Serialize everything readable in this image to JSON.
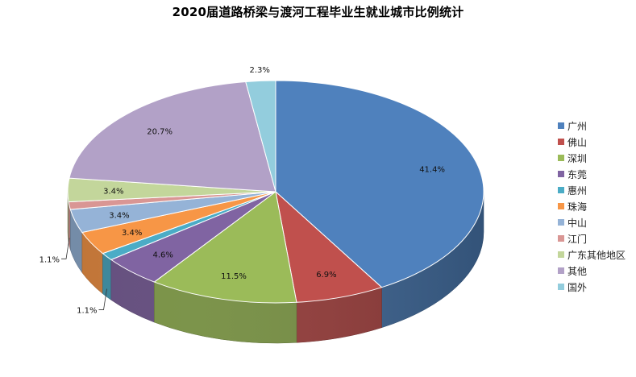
{
  "chart_data": {
    "type": "pie",
    "title": "2020届道路桥梁与渡河工程毕业生就业城市比例统计",
    "categories": [
      "广州",
      "佛山",
      "深圳",
      "东莞",
      "惠州",
      "珠海",
      "中山",
      "江门",
      "广东其他地区",
      "其他",
      "国外"
    ],
    "values": [
      41.4,
      6.9,
      11.5,
      4.6,
      1.1,
      3.4,
      3.4,
      1.1,
      3.4,
      20.7,
      2.3
    ],
    "labels": [
      "41.4%",
      "6.9%",
      "11.5%",
      "4.6%",
      "1.1%",
      "3.4%",
      "3.4%",
      "1.1%",
      "3.4%",
      "20.7%",
      "2.3%"
    ],
    "colors": [
      "#4F81BD",
      "#C0504D",
      "#9BBB59",
      "#8064A2",
      "#4BACC6",
      "#F79646",
      "#95B3D7",
      "#D99694",
      "#C3D69B",
      "#B2A1C7",
      "#93CDDD"
    ],
    "legend": "right",
    "style": "3d-exploded-tilted"
  }
}
